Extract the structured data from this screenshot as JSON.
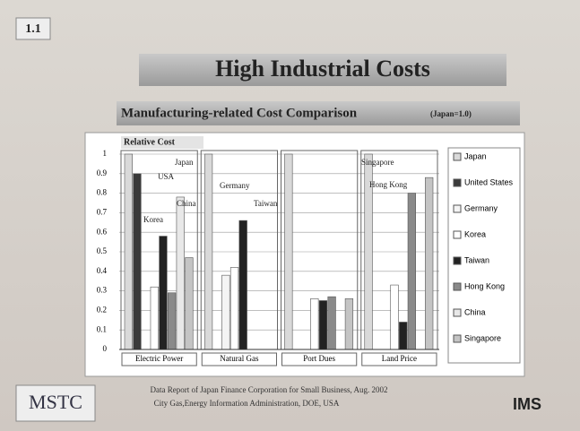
{
  "slide_number": "1.1",
  "chart_data": {
    "type": "bar",
    "title": "High Industrial Costs",
    "subtitle": "Manufacturing-related Cost Comparison",
    "subtitle_note": "(Japan=1.0)",
    "y_label": "Relative Cost",
    "categories": [
      "Electric Power",
      "Natural Gas",
      "Port Dues",
      "Land Price"
    ],
    "series": [
      {
        "name": "Japan",
        "color": "#d9d9d9",
        "values": [
          1,
          1,
          1,
          1
        ]
      },
      {
        "name": "United States",
        "color": "#3a3a3a",
        "values": [
          0.9,
          null,
          null,
          null
        ]
      },
      {
        "name": "Germany",
        "color": "#f4f4f4",
        "values": [
          null,
          0.38,
          null,
          null
        ]
      },
      {
        "name": "Korea",
        "color": "#ffffff",
        "values": [
          0.32,
          0.42,
          0.26,
          0.33
        ]
      },
      {
        "name": "Taiwan",
        "color": "#222222",
        "values": [
          0.58,
          0.66,
          0.25,
          0.14
        ]
      },
      {
        "name": "Hong Kong",
        "color": "#8a8a8a",
        "values": [
          0.29,
          null,
          0.27,
          0.8
        ]
      },
      {
        "name": "China",
        "color": "#e8e8e8",
        "values": [
          0.78,
          null,
          null,
          null
        ]
      },
      {
        "name": "Singapore",
        "color": "#c4c4c4",
        "values": [
          0.47,
          null,
          0.26,
          0.88
        ]
      }
    ],
    "annotations": [
      "Japan",
      "USA",
      "Korea",
      "China",
      "Germany",
      "Taiwan",
      "Singapore",
      "Hong Kong"
    ],
    "ylim": [
      0,
      1
    ],
    "yticks": [
      0,
      0.1,
      0.2,
      0.3,
      0.4,
      0.5,
      0.6,
      0.7,
      0.8,
      0.9,
      1
    ]
  },
  "sources": [
    "Data Report of Japan Finance Corporation for Small Business, Aug. 2002",
    "City Gas,Energy Information Administration, DOE, USA"
  ],
  "logos": [
    "MSTC",
    "IMS"
  ]
}
